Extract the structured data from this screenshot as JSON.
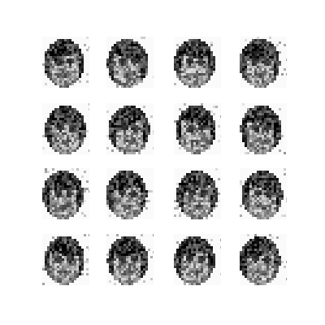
{
  "figure": {
    "grid": {
      "rows": 4,
      "cols": 4
    },
    "tiles": [
      {
        "variant": 0
      },
      {
        "variant": 1
      },
      {
        "variant": 2
      },
      {
        "variant": 3
      },
      {
        "variant": 4
      },
      {
        "variant": 5
      },
      {
        "variant": 6
      },
      {
        "variant": 7
      },
      {
        "variant": 8
      },
      {
        "variant": 9
      },
      {
        "variant": 10
      },
      {
        "variant": 11
      },
      {
        "variant": 12
      },
      {
        "variant": 13
      },
      {
        "variant": 14
      },
      {
        "variant": 15
      }
    ],
    "palette": {
      "background": "#ffffff",
      "dark": "#1e1e1e",
      "mid": "#7a7a7a",
      "light": "#d8d8d8"
    }
  }
}
